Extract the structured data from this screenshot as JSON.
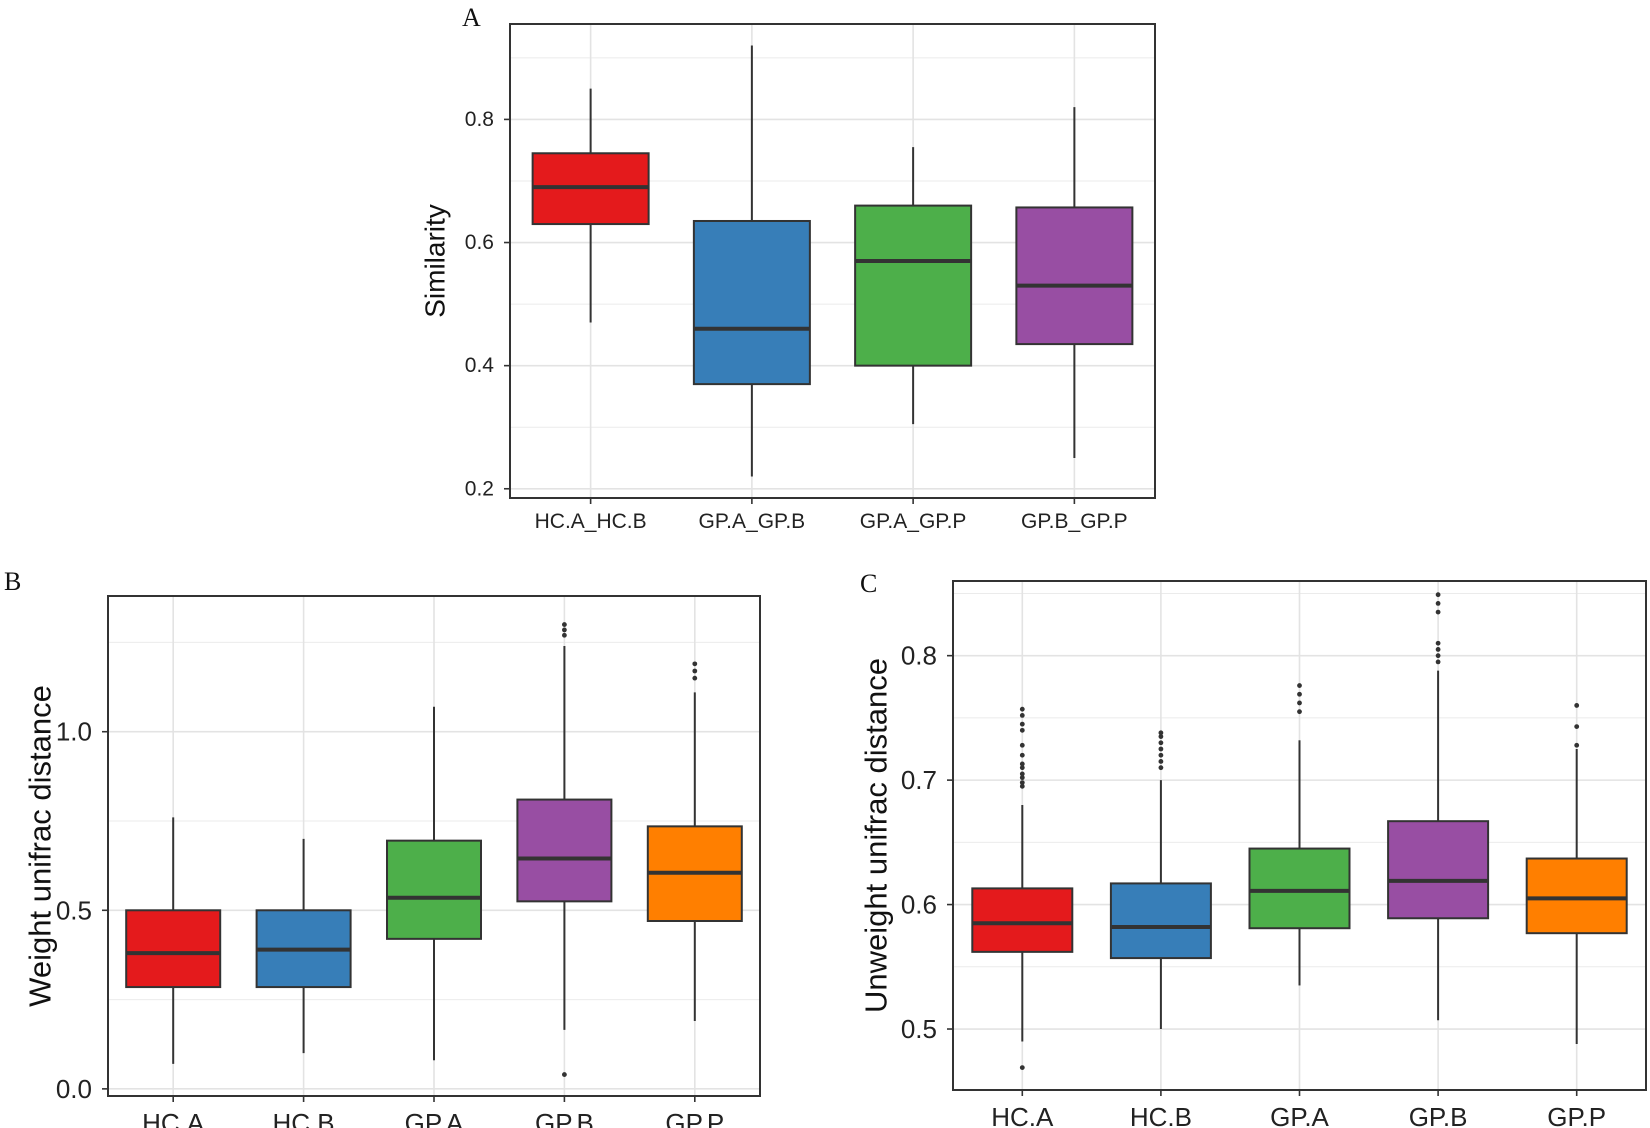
{
  "figure": {
    "panels": [
      "A",
      "B",
      "C"
    ]
  },
  "chart_data": [
    {
      "panel": "A",
      "type": "box",
      "title": "",
      "xlabel": "",
      "ylabel": "Similarity",
      "ylim": [
        0.185,
        0.955
      ],
      "yticks": [
        0.2,
        0.4,
        0.6,
        0.8
      ],
      "ytick_labels": [
        "0.2",
        "0.4",
        "0.6",
        "0.8"
      ],
      "grid": true,
      "categories": [
        "HC.A_HC.B",
        "GP.A_GP.B",
        "GP.A_GP.P",
        "GP.B_GP.P"
      ],
      "colors": [
        "#E41A1C",
        "#377EB8",
        "#4DAF4A",
        "#984EA3"
      ],
      "boxes": [
        {
          "whisker_low": 0.47,
          "q1": 0.63,
          "median": 0.69,
          "q3": 0.745,
          "whisker_high": 0.85,
          "outliers": []
        },
        {
          "whisker_low": 0.22,
          "q1": 0.37,
          "median": 0.46,
          "q3": 0.635,
          "whisker_high": 0.92,
          "outliers": []
        },
        {
          "whisker_low": 0.305,
          "q1": 0.4,
          "median": 0.57,
          "q3": 0.66,
          "whisker_high": 0.755,
          "outliers": []
        },
        {
          "whisker_low": 0.25,
          "q1": 0.435,
          "median": 0.53,
          "q3": 0.657,
          "whisker_high": 0.82,
          "outliers": []
        }
      ]
    },
    {
      "panel": "B",
      "type": "box",
      "title": "",
      "xlabel": "",
      "ylabel": "Weight unifrac distance",
      "ylim": [
        -0.02,
        1.38
      ],
      "yticks": [
        0.0,
        0.5,
        1.0
      ],
      "ytick_labels": [
        "0.0",
        "0.5",
        "1.0"
      ],
      "grid": true,
      "categories": [
        "HC.A",
        "HC.B",
        "GP.A",
        "GP.B",
        "GP.P"
      ],
      "colors": [
        "#E41A1C",
        "#377EB8",
        "#4DAF4A",
        "#984EA3",
        "#FF7F00"
      ],
      "boxes": [
        {
          "whisker_low": 0.07,
          "q1": 0.285,
          "median": 0.38,
          "q3": 0.5,
          "whisker_high": 0.76,
          "outliers": []
        },
        {
          "whisker_low": 0.1,
          "q1": 0.285,
          "median": 0.39,
          "q3": 0.5,
          "whisker_high": 0.7,
          "outliers": []
        },
        {
          "whisker_low": 0.08,
          "q1": 0.42,
          "median": 0.535,
          "q3": 0.695,
          "whisker_high": 1.07,
          "outliers": []
        },
        {
          "whisker_low": 0.165,
          "q1": 0.525,
          "median": 0.645,
          "q3": 0.81,
          "whisker_high": 1.24,
          "outliers": [
            0.04,
            1.27,
            1.285,
            1.3
          ]
        },
        {
          "whisker_low": 0.19,
          "q1": 0.47,
          "median": 0.605,
          "q3": 0.735,
          "whisker_high": 1.11,
          "outliers": [
            1.15,
            1.17,
            1.19
          ]
        }
      ]
    },
    {
      "panel": "C",
      "type": "box",
      "title": "",
      "xlabel": "",
      "ylabel": "Unweight unifrac distance",
      "ylim": [
        0.451,
        0.86
      ],
      "yticks": [
        0.5,
        0.6,
        0.7,
        0.8
      ],
      "ytick_labels": [
        "0.5",
        "0.6",
        "0.7",
        "0.8"
      ],
      "grid": true,
      "categories": [
        "HC.A",
        "HC.B",
        "GP.A",
        "GP.B",
        "GP.P"
      ],
      "colors": [
        "#E41A1C",
        "#377EB8",
        "#4DAF4A",
        "#984EA3",
        "#FF7F00"
      ],
      "boxes": [
        {
          "whisker_low": 0.49,
          "q1": 0.562,
          "median": 0.585,
          "q3": 0.613,
          "whisker_high": 0.68,
          "outliers": [
            0.469,
            0.695,
            0.698,
            0.702,
            0.705,
            0.71,
            0.713,
            0.72,
            0.728,
            0.74,
            0.745,
            0.752,
            0.757
          ]
        },
        {
          "whisker_low": 0.5,
          "q1": 0.557,
          "median": 0.582,
          "q3": 0.617,
          "whisker_high": 0.7,
          "outliers": [
            0.71,
            0.715,
            0.72,
            0.725,
            0.73,
            0.735,
            0.738
          ]
        },
        {
          "whisker_low": 0.535,
          "q1": 0.581,
          "median": 0.611,
          "q3": 0.645,
          "whisker_high": 0.732,
          "outliers": [
            0.755,
            0.762,
            0.769,
            0.776
          ]
        },
        {
          "whisker_low": 0.507,
          "q1": 0.589,
          "median": 0.619,
          "q3": 0.667,
          "whisker_high": 0.788,
          "outliers": [
            0.795,
            0.8,
            0.805,
            0.81,
            0.835,
            0.842,
            0.849
          ]
        },
        {
          "whisker_low": 0.488,
          "q1": 0.577,
          "median": 0.605,
          "q3": 0.637,
          "whisker_high": 0.725,
          "outliers": [
            0.728,
            0.743,
            0.76
          ]
        }
      ]
    }
  ]
}
